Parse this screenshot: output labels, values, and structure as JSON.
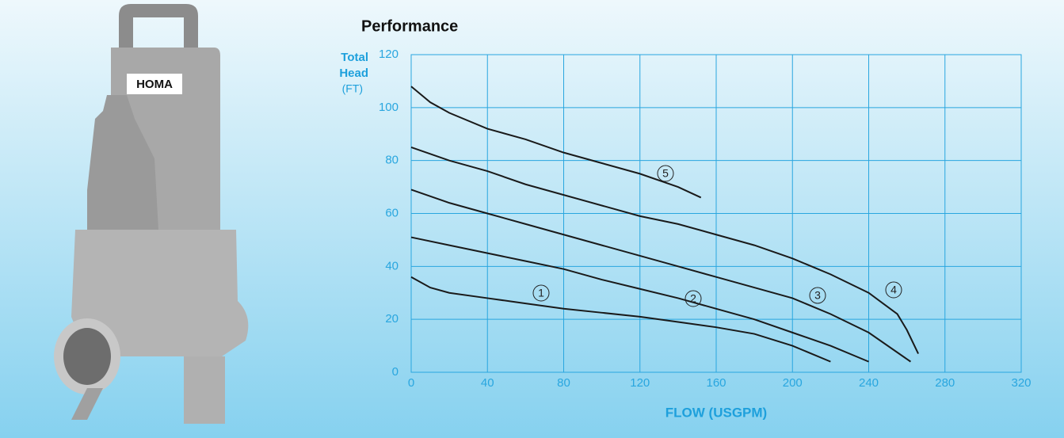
{
  "logo": "HOMA",
  "chart_data": {
    "type": "line",
    "title": "Performance",
    "y_label_lines": [
      "Total",
      "Head"
    ],
    "y_unit": "(FT)",
    "x_label": "FLOW (USGPM)",
    "xlim": [
      0,
      320
    ],
    "xticks": [
      0,
      40,
      80,
      120,
      160,
      200,
      240,
      280,
      320
    ],
    "ylim": [
      0,
      120
    ],
    "yticks": [
      0,
      20,
      40,
      60,
      80,
      100,
      120
    ],
    "grid": true,
    "series": [
      {
        "name": "1",
        "color": "#1a1a1a",
        "x": [
          0,
          10,
          20,
          40,
          60,
          80,
          100,
          120,
          140,
          160,
          180,
          200,
          220
        ],
        "values": [
          36,
          32,
          30,
          28,
          26,
          24,
          22.5,
          21,
          19,
          17,
          14.5,
          10,
          4
        ]
      },
      {
        "name": "2",
        "color": "#1a1a1a",
        "x": [
          0,
          20,
          40,
          60,
          80,
          100,
          120,
          140,
          160,
          180,
          200,
          220,
          240
        ],
        "values": [
          51,
          48,
          45,
          42,
          39,
          35,
          31.5,
          28,
          24,
          20,
          15,
          10,
          4
        ]
      },
      {
        "name": "3",
        "color": "#1a1a1a",
        "x": [
          0,
          20,
          40,
          60,
          80,
          100,
          120,
          140,
          160,
          180,
          200,
          220,
          240,
          262
        ],
        "values": [
          69,
          64,
          60,
          56,
          52,
          48,
          44,
          40,
          36,
          32,
          28,
          22,
          15,
          4
        ]
      },
      {
        "name": "4",
        "color": "#1a1a1a",
        "x": [
          0,
          20,
          40,
          60,
          80,
          100,
          120,
          140,
          160,
          180,
          200,
          220,
          240,
          255,
          260,
          266
        ],
        "values": [
          85,
          80,
          76,
          71,
          67,
          63,
          59,
          56,
          52,
          48,
          43,
          37,
          30,
          22,
          16,
          7
        ]
      },
      {
        "name": "5",
        "color": "#1a1a1a",
        "x": [
          0,
          10,
          20,
          40,
          60,
          80,
          100,
          120,
          140,
          152
        ],
        "values": [
          108,
          102,
          98,
          92,
          88,
          83,
          79,
          75,
          70,
          66
        ]
      }
    ]
  }
}
